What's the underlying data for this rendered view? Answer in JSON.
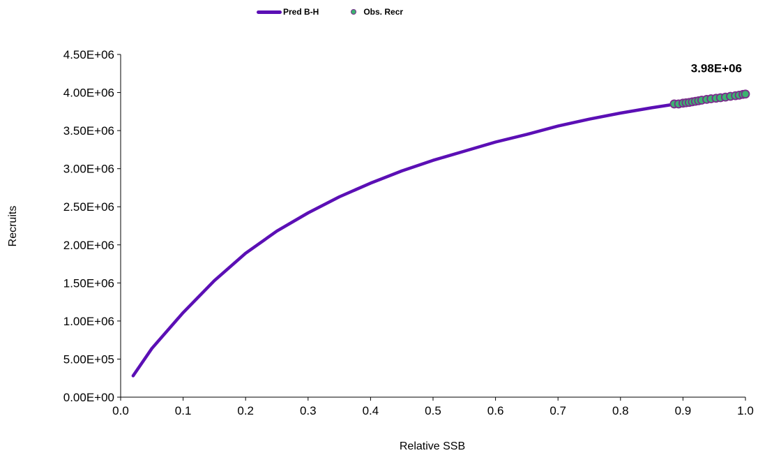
{
  "chart_data": {
    "type": "line",
    "xlabel": "Relative SSB",
    "ylabel": "Recruits",
    "xlim": [
      0.0,
      1.0
    ],
    "ylim": [
      0,
      4500000
    ],
    "x_ticks": [
      "0.0",
      "0.1",
      "0.2",
      "0.3",
      "0.4",
      "0.5",
      "0.6",
      "0.7",
      "0.8",
      "0.9",
      "1.0"
    ],
    "y_ticks": [
      "0.00E+00",
      "5.00E+05",
      "1.00E+06",
      "1.50E+06",
      "2.00E+06",
      "2.50E+06",
      "3.00E+06",
      "3.50E+06",
      "4.00E+06",
      "4.50E+06"
    ],
    "grid": false,
    "legend_position": "top",
    "series": [
      {
        "name": "Pred B-H",
        "kind": "line",
        "color": "#5B0FB5",
        "x": [
          0.02,
          0.05,
          0.1,
          0.15,
          0.2,
          0.25,
          0.3,
          0.35,
          0.4,
          0.45,
          0.5,
          0.55,
          0.6,
          0.65,
          0.7,
          0.75,
          0.8,
          0.85,
          0.89,
          0.92,
          0.95,
          0.98,
          1.0
        ],
        "y": [
          280000,
          640000,
          1110000,
          1530000,
          1890000,
          2180000,
          2420000,
          2630000,
          2810000,
          2970000,
          3110000,
          3230000,
          3350000,
          3450000,
          3560000,
          3650000,
          3730000,
          3800000,
          3850000,
          3880000,
          3920000,
          3960000,
          3980000
        ]
      },
      {
        "name": "Obs. Recr",
        "kind": "scatter",
        "color": "#3CB371",
        "edge_color": "#7B2C8C",
        "x": [
          0.886,
          0.893,
          0.9,
          0.905,
          0.91,
          0.915,
          0.92,
          0.925,
          0.93,
          0.938,
          0.945,
          0.953,
          0.96,
          0.968,
          0.976,
          0.984,
          0.99,
          0.996,
          1.0
        ],
        "y": [
          3850000,
          3850000,
          3860000,
          3865000,
          3870000,
          3878000,
          3885000,
          3892000,
          3900000,
          3910000,
          3918000,
          3925000,
          3932000,
          3940000,
          3950000,
          3958000,
          3965000,
          3975000,
          3980000
        ]
      }
    ],
    "annotations": [
      {
        "text": "3.98E+06",
        "x": 1.0,
        "y": 3980000
      }
    ]
  }
}
